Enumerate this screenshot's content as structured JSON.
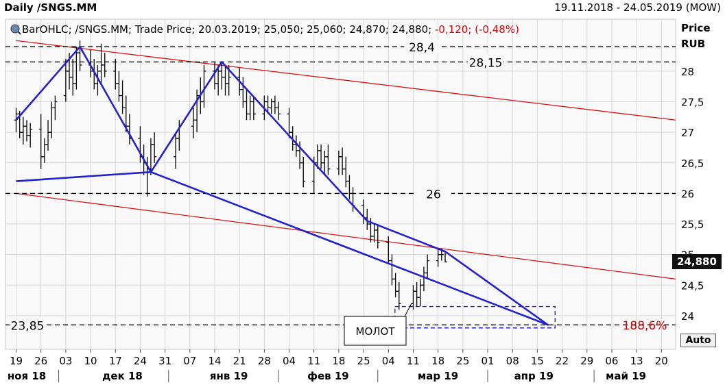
{
  "header": {
    "title": "Daily /SNGS.MM",
    "range": "19.11.2018 - 24.05.2019 (MOW)"
  },
  "legend": {
    "prefix": "BarOHLC; /SNGS.MM; Trade Price; 20.03.2019; 25,050; 25,060; 24,870; 24,880;",
    "change": "-0,120; (-0,48%)"
  },
  "axis": {
    "y_title": "Price",
    "y_unit": "RUB",
    "y_ticks": [
      "28",
      "27,5",
      "27",
      "26,5",
      "26",
      "25,5",
      "25",
      "24,5",
      "24"
    ],
    "last_price": "24,880",
    "auto_label": "Auto",
    "day_ticks": [
      "19",
      "26",
      "03",
      "10",
      "17",
      "24",
      "31",
      "07",
      "14",
      "21",
      "28",
      "04",
      "11",
      "18",
      "25",
      "04",
      "11",
      "18",
      "25",
      "01",
      "08",
      "15",
      "22",
      "29",
      "06",
      "13",
      "20"
    ],
    "month_labels": [
      "ноя 18",
      "дек 18",
      "янв 19",
      "фев 19",
      "мар 19",
      "апр 19",
      "май 19"
    ]
  },
  "annotations": {
    "level_284": "28,4",
    "level_2815": "28,15",
    "level_26": "26",
    "level_2385": "23,85",
    "fib_pct": "188,6%",
    "molot": "МОЛОТ"
  },
  "colors": {
    "price_bars": "#000000",
    "pattern_lines": "#2222cc",
    "channel_lines": "#dd1111",
    "fib_text": "#dd0000",
    "change_text": "#dd0000",
    "grid": "#d8d8d8",
    "plot_bg": "#f9f9f9"
  },
  "chart_data": {
    "type": "bar",
    "subtype": "ohlc",
    "title": "Daily /SNGS.MM",
    "ylabel": "Price RUB",
    "ylim": [
      23.45,
      28.85
    ],
    "x_range": [
      "2018-11-19",
      "2019-05-24"
    ],
    "last_bar": {
      "date": "2019-03-20",
      "open": 25.05,
      "high": 25.06,
      "low": 24.87,
      "close": 24.88,
      "change": -0.12,
      "change_pct": -0.48
    },
    "horizontal_levels": [
      28.4,
      28.15,
      26.0,
      23.85
    ],
    "fib_extension_pct": 188.6,
    "ohlc": [
      [
        "2018-11-19",
        27.2,
        27.4,
        27.0,
        27.3
      ],
      [
        "2018-11-20",
        27.3,
        27.35,
        26.9,
        27.0
      ],
      [
        "2018-11-21",
        27.0,
        27.25,
        26.8,
        27.1
      ],
      [
        "2018-11-22",
        27.1,
        27.2,
        26.85,
        26.95
      ],
      [
        "2018-11-23",
        26.95,
        27.15,
        26.75,
        27.05
      ],
      [
        "2018-11-26",
        27.05,
        27.3,
        26.4,
        26.6
      ],
      [
        "2018-11-27",
        26.6,
        26.9,
        26.5,
        26.8
      ],
      [
        "2018-11-28",
        26.8,
        27.2,
        26.7,
        27.0
      ],
      [
        "2018-11-29",
        27.0,
        27.5,
        26.9,
        27.4
      ],
      [
        "2018-11-30",
        27.4,
        27.6,
        27.2,
        27.5
      ],
      [
        "2018-12-03",
        27.6,
        28.2,
        27.5,
        28.0
      ],
      [
        "2018-12-04",
        28.0,
        28.3,
        27.7,
        27.9
      ],
      [
        "2018-12-05",
        27.9,
        28.2,
        27.6,
        27.8
      ],
      [
        "2018-12-06",
        27.8,
        28.4,
        27.7,
        28.3
      ],
      [
        "2018-12-07",
        28.3,
        28.5,
        28.0,
        28.1
      ],
      [
        "2018-12-10",
        28.1,
        28.35,
        27.9,
        28.0
      ],
      [
        "2018-12-11",
        28.0,
        28.2,
        27.7,
        27.8
      ],
      [
        "2018-12-12",
        27.8,
        28.1,
        27.6,
        28.0
      ],
      [
        "2018-12-13",
        28.0,
        28.45,
        27.8,
        28.1
      ],
      [
        "2018-12-14",
        28.1,
        28.3,
        27.9,
        28.0
      ],
      [
        "2018-12-17",
        28.0,
        28.2,
        27.7,
        27.8
      ],
      [
        "2018-12-18",
        27.8,
        28.0,
        27.5,
        27.6
      ],
      [
        "2018-12-19",
        27.6,
        27.85,
        27.3,
        27.4
      ],
      [
        "2018-12-20",
        27.4,
        27.6,
        27.0,
        27.1
      ],
      [
        "2018-12-21",
        27.1,
        27.3,
        26.8,
        26.9
      ],
      [
        "2018-12-24",
        26.9,
        27.1,
        26.5,
        26.6
      ],
      [
        "2018-12-25",
        26.6,
        26.8,
        26.3,
        26.5
      ],
      [
        "2018-12-26",
        26.5,
        26.6,
        25.95,
        26.4
      ],
      [
        "2018-12-27",
        26.4,
        26.9,
        26.3,
        26.8
      ],
      [
        "2018-12-28",
        26.8,
        27.0,
        26.5,
        26.6
      ],
      [
        "2019-01-03",
        26.6,
        27.0,
        26.4,
        26.9
      ],
      [
        "2019-01-04",
        26.9,
        27.2,
        26.7,
        27.1
      ],
      [
        "2019-01-08",
        27.1,
        27.4,
        26.9,
        27.2
      ],
      [
        "2019-01-09",
        27.2,
        27.7,
        27.0,
        27.6
      ],
      [
        "2019-01-10",
        27.6,
        27.9,
        27.3,
        27.5
      ],
      [
        "2019-01-11",
        27.5,
        28.1,
        27.4,
        28.0
      ],
      [
        "2019-01-14",
        28.0,
        28.15,
        27.7,
        27.8
      ],
      [
        "2019-01-15",
        27.8,
        28.1,
        27.6,
        28.0
      ],
      [
        "2019-01-16",
        28.0,
        28.15,
        27.7,
        27.9
      ],
      [
        "2019-01-17",
        27.9,
        28.1,
        27.6,
        27.8
      ],
      [
        "2019-01-18",
        27.8,
        28.1,
        27.6,
        27.9
      ],
      [
        "2019-01-21",
        27.9,
        28.05,
        27.6,
        27.7
      ],
      [
        "2019-01-22",
        27.7,
        27.9,
        27.4,
        27.5
      ],
      [
        "2019-01-23",
        27.5,
        27.7,
        27.2,
        27.3
      ],
      [
        "2019-01-24",
        27.3,
        27.6,
        27.2,
        27.5
      ],
      [
        "2019-01-25",
        27.5,
        27.6,
        27.2,
        27.3
      ],
      [
        "2019-01-28",
        27.3,
        27.6,
        27.2,
        27.5
      ],
      [
        "2019-01-29",
        27.5,
        27.6,
        27.3,
        27.4
      ],
      [
        "2019-01-30",
        27.4,
        27.55,
        27.3,
        27.5
      ],
      [
        "2019-01-31",
        27.5,
        27.6,
        27.3,
        27.4
      ],
      [
        "2019-02-01",
        27.4,
        27.5,
        27.2,
        27.3
      ],
      [
        "2019-02-04",
        27.3,
        27.4,
        26.9,
        27.0
      ],
      [
        "2019-02-05",
        27.0,
        27.1,
        26.7,
        26.8
      ],
      [
        "2019-02-06",
        26.8,
        26.95,
        26.6,
        26.7
      ],
      [
        "2019-02-07",
        26.7,
        26.85,
        26.4,
        26.5
      ],
      [
        "2019-02-08",
        26.5,
        26.6,
        26.1,
        26.2
      ],
      [
        "2019-02-11",
        26.2,
        26.6,
        26.0,
        26.5
      ],
      [
        "2019-02-12",
        26.5,
        26.8,
        26.4,
        26.7
      ],
      [
        "2019-02-13",
        26.7,
        26.8,
        26.4,
        26.5
      ],
      [
        "2019-02-14",
        26.5,
        26.7,
        26.3,
        26.6
      ],
      [
        "2019-02-15",
        26.6,
        26.8,
        26.3,
        26.4
      ],
      [
        "2019-02-18",
        26.4,
        26.7,
        26.3,
        26.6
      ],
      [
        "2019-02-19",
        26.6,
        26.75,
        26.3,
        26.4
      ],
      [
        "2019-02-20",
        26.4,
        26.6,
        26.1,
        26.2
      ],
      [
        "2019-02-21",
        26.2,
        26.3,
        25.9,
        26.0
      ],
      [
        "2019-02-22",
        26.0,
        26.1,
        25.7,
        25.8
      ],
      [
        "2019-02-25",
        25.8,
        25.9,
        25.5,
        25.6
      ],
      [
        "2019-02-26",
        25.6,
        25.75,
        25.4,
        25.5
      ],
      [
        "2019-02-27",
        25.5,
        25.6,
        25.2,
        25.3
      ],
      [
        "2019-02-28",
        25.3,
        25.5,
        25.2,
        25.4
      ],
      [
        "2019-03-01",
        25.4,
        25.5,
        25.1,
        25.2
      ],
      [
        "2019-03-04",
        25.2,
        25.3,
        24.85,
        24.9
      ],
      [
        "2019-03-05",
        24.9,
        25.0,
        24.5,
        24.6
      ],
      [
        "2019-03-06",
        24.6,
        24.7,
        24.3,
        24.4
      ],
      [
        "2019-03-07",
        24.4,
        24.55,
        24.1,
        24.2
      ],
      [
        "2019-03-11",
        24.2,
        24.5,
        24.1,
        24.4
      ],
      [
        "2019-03-12",
        24.4,
        24.55,
        24.15,
        24.3
      ],
      [
        "2019-03-13",
        24.3,
        24.6,
        24.15,
        24.5
      ],
      [
        "2019-03-14",
        24.5,
        24.8,
        24.4,
        24.7
      ],
      [
        "2019-03-15",
        24.7,
        25.0,
        24.6,
        24.9
      ],
      [
        "2019-03-18",
        24.9,
        25.1,
        24.8,
        25.0
      ],
      [
        "2019-03-19",
        25.0,
        25.1,
        24.9,
        25.0
      ],
      [
        "2019-03-20",
        25.05,
        25.06,
        24.87,
        24.88
      ]
    ],
    "pattern_points": [
      [
        "2018-11-19",
        27.2
      ],
      [
        "2018-12-07",
        28.4
      ],
      [
        "2018-12-27",
        26.35
      ],
      [
        "2019-01-16",
        28.15
      ],
      [
        "2019-02-26",
        25.55
      ],
      [
        "2019-03-20",
        25.05
      ],
      [
        "2019-04-18",
        23.85
      ],
      [
        "2018-12-27",
        26.35
      ],
      [
        "2018-11-19",
        26.2
      ]
    ],
    "channel_lines": [
      {
        "from": [
          "2018-11-19",
          28.5
        ],
        "to": [
          "2019-05-24",
          27.2
        ]
      },
      {
        "from": [
          "2018-11-19",
          26.0
        ],
        "to": [
          "2019-05-24",
          24.6
        ]
      }
    ],
    "hammer_box": {
      "from": [
        "2019-03-07",
        24.15
      ],
      "to": [
        "2019-04-20",
        23.8
      ]
    }
  }
}
